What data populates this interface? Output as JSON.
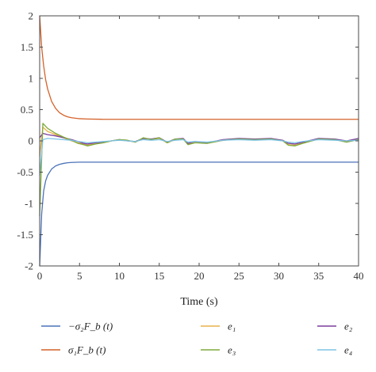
{
  "chart_data": {
    "type": "line",
    "xlabel": "Time (s)",
    "ylabel": "",
    "xlim": [
      0,
      40
    ],
    "ylim": [
      -2,
      2
    ],
    "xticks": [
      "0",
      "5",
      "10",
      "15",
      "20",
      "25",
      "30",
      "35",
      "40"
    ],
    "yticks": [
      "-2",
      "-1.5",
      "-1",
      "-0.5",
      "0",
      "0.5",
      "1",
      "1.5",
      "2"
    ],
    "grid": false,
    "legend_position": "bottom",
    "series": [
      {
        "name": "−σ₂F_b (t)",
        "color": "#4a72b8",
        "x": [
          0,
          0.25,
          0.5,
          0.75,
          1,
          1.5,
          2,
          2.5,
          3,
          3.5,
          4,
          5,
          6,
          8,
          10,
          15,
          20,
          25,
          30,
          35,
          40
        ],
        "y": [
          -2.0,
          -1.17,
          -0.8,
          -0.64,
          -0.55,
          -0.45,
          -0.4,
          -0.375,
          -0.36,
          -0.35,
          -0.345,
          -0.34,
          -0.34,
          -0.34,
          -0.34,
          -0.34,
          -0.34,
          -0.34,
          -0.34,
          -0.34,
          -0.34
        ]
      },
      {
        "name": "σ₁F_b (t)",
        "color": "#d4622a",
        "x": [
          0,
          0.25,
          0.5,
          0.75,
          1,
          1.5,
          2,
          2.5,
          3,
          3.5,
          4,
          5,
          6,
          8,
          10,
          15,
          20,
          25,
          30,
          35,
          40
        ],
        "y": [
          2.0,
          1.5,
          1.2,
          0.98,
          0.83,
          0.63,
          0.52,
          0.45,
          0.41,
          0.385,
          0.37,
          0.355,
          0.35,
          0.345,
          0.345,
          0.345,
          0.345,
          0.345,
          0.345,
          0.345,
          0.345
        ]
      },
      {
        "name": "e₁",
        "color": "#e8b04a",
        "x": [
          0,
          0.4,
          1,
          2,
          3,
          4,
          4.8,
          5.5,
          6,
          7,
          8,
          9,
          10,
          11,
          12,
          13,
          14,
          15,
          16,
          17,
          18,
          18.6,
          19.5,
          21,
          23,
          25,
          27,
          29,
          30.5,
          31.2,
          32,
          33,
          35,
          37,
          38.5,
          40
        ],
        "y": [
          -0.25,
          0.22,
          0.15,
          0.1,
          0.05,
          0.0,
          -0.03,
          -0.05,
          -0.07,
          -0.04,
          -0.03,
          0.0,
          0.02,
          0.01,
          -0.02,
          0.04,
          0.02,
          0.04,
          -0.03,
          0.02,
          0.03,
          -0.05,
          -0.02,
          -0.04,
          0.01,
          0.03,
          0.02,
          0.03,
          0.0,
          -0.06,
          -0.07,
          -0.03,
          0.03,
          0.02,
          -0.01,
          0.02
        ]
      },
      {
        "name": "e₂",
        "color": "#7a3f9d",
        "x": [
          0,
          0.4,
          1,
          2,
          3,
          4,
          4.8,
          5.5,
          6,
          7,
          8,
          9,
          10,
          11,
          12,
          13,
          14,
          15,
          16,
          17,
          18,
          18.6,
          19.5,
          21,
          23,
          25,
          27,
          29,
          30.5,
          31.2,
          32,
          33,
          35,
          37,
          38.5,
          40
        ],
        "y": [
          0.05,
          0.12,
          0.1,
          0.08,
          0.05,
          0.02,
          -0.01,
          -0.04,
          -0.05,
          -0.03,
          -0.02,
          0.0,
          0.02,
          0.0,
          -0.01,
          0.04,
          0.03,
          0.05,
          -0.02,
          0.03,
          0.04,
          -0.04,
          -0.01,
          -0.03,
          0.02,
          0.04,
          0.03,
          0.04,
          0.01,
          -0.04,
          -0.05,
          -0.02,
          0.04,
          0.03,
          0.0,
          0.04
        ]
      },
      {
        "name": "e₃",
        "color": "#7eaa3a",
        "x": [
          0,
          0.4,
          1,
          2,
          3,
          4,
          4.8,
          5.5,
          6,
          7,
          8,
          9,
          10,
          11,
          12,
          13,
          14,
          15,
          16,
          17,
          18,
          18.6,
          19.5,
          21,
          23,
          25,
          27,
          29,
          30.5,
          31.2,
          32,
          33,
          35,
          37,
          38.5,
          40
        ],
        "y": [
          -1.2,
          0.28,
          0.2,
          0.12,
          0.06,
          0.01,
          -0.04,
          -0.06,
          -0.08,
          -0.05,
          -0.03,
          0.0,
          0.02,
          0.01,
          -0.02,
          0.05,
          0.02,
          0.05,
          -0.03,
          0.03,
          0.03,
          -0.06,
          -0.03,
          -0.04,
          0.01,
          0.03,
          0.02,
          0.03,
          0.0,
          -0.07,
          -0.08,
          -0.04,
          0.03,
          0.02,
          -0.02,
          0.02
        ]
      },
      {
        "name": "e₄",
        "color": "#7ec4e6",
        "x": [
          0,
          0.4,
          1,
          2,
          3,
          4,
          4.8,
          5.5,
          6,
          7,
          8,
          9,
          10,
          11,
          12,
          13,
          14,
          15,
          16,
          17,
          18,
          18.6,
          19.5,
          21,
          23,
          25,
          27,
          29,
          30.5,
          31.2,
          32,
          33,
          35,
          37,
          38.5,
          40
        ],
        "y": [
          -0.55,
          0.02,
          0.04,
          0.03,
          0.02,
          0.01,
          -0.01,
          -0.02,
          -0.03,
          -0.02,
          -0.01,
          0.0,
          0.01,
          0.0,
          -0.01,
          0.02,
          0.01,
          0.02,
          -0.01,
          0.01,
          0.02,
          -0.02,
          -0.01,
          -0.02,
          0.01,
          0.02,
          0.01,
          0.02,
          0.0,
          -0.02,
          -0.03,
          -0.01,
          0.02,
          0.01,
          0.0,
          0.01
        ]
      }
    ]
  }
}
